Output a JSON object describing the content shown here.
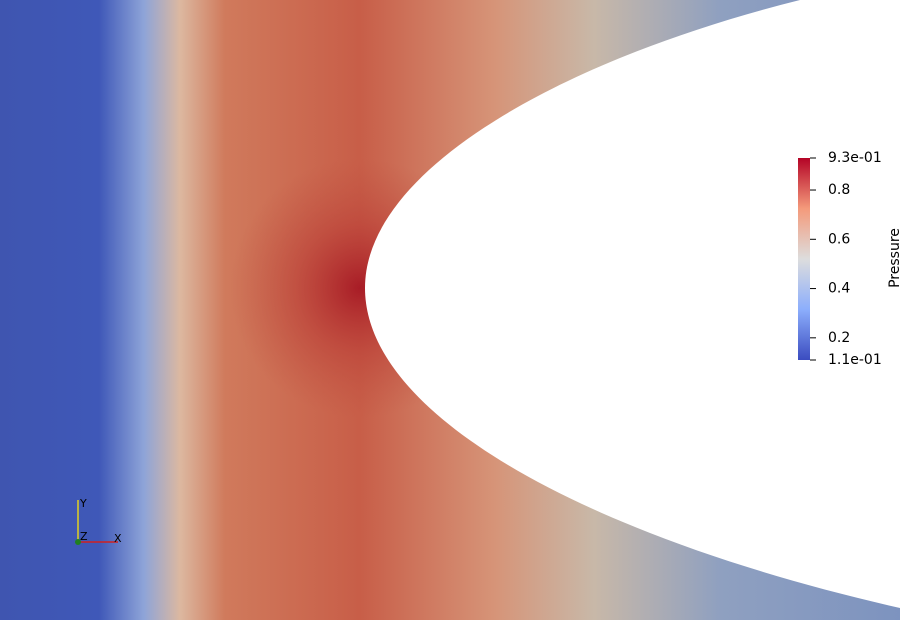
{
  "colorbar": {
    "title": "Pressure",
    "range": [
      0.11,
      0.93
    ],
    "ticks": [
      {
        "value": 0.93,
        "label": "9.3e-01"
      },
      0.8,
      0.6,
      0.4,
      0.2,
      {
        "value": 0.11,
        "label": "1.1e-01"
      }
    ]
  },
  "orientation_axes": {
    "x": "X",
    "y": "Y",
    "z": "Z"
  }
}
